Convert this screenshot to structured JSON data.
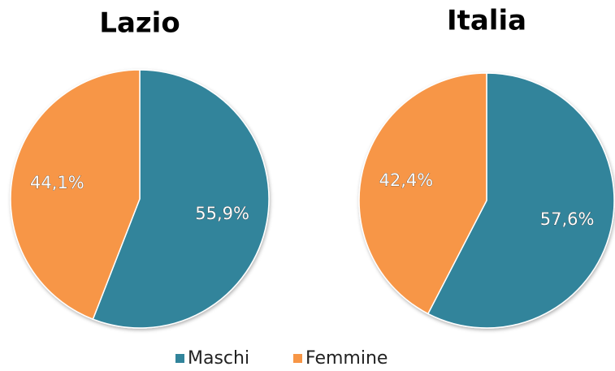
{
  "chart_data": [
    {
      "type": "pie",
      "title": "Lazio",
      "values": [
        55.9,
        44.1
      ],
      "value_labels": [
        "55,9%",
        "44,1%"
      ],
      "colors": [
        "#31849b",
        "#f79646"
      ]
    },
    {
      "type": "pie",
      "title": "Italia",
      "values": [
        57.6,
        42.4
      ],
      "value_labels": [
        "57,6%",
        "42,4%"
      ],
      "colors": [
        "#31849b",
        "#f79646"
      ]
    }
  ],
  "legend": {
    "labels": [
      "Maschi",
      "Femmine"
    ],
    "colors": [
      "#31849b",
      "#f79646"
    ]
  }
}
